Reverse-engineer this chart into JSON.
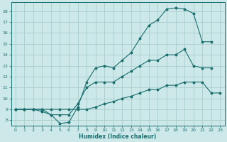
{
  "bg_color": "#cce8e8",
  "grid_color": "#aacccc",
  "line_color": "#1a6e6e",
  "xlabel": "Humidex (Indice chaleur)",
  "xlim": [
    -0.5,
    23.5
  ],
  "ylim": [
    7.5,
    18.8
  ],
  "xticks": [
    0,
    1,
    2,
    3,
    4,
    5,
    6,
    7,
    8,
    9,
    10,
    11,
    12,
    13,
    14,
    15,
    16,
    17,
    18,
    19,
    20,
    21,
    22,
    23
  ],
  "yticks": [
    8,
    9,
    10,
    11,
    12,
    13,
    14,
    15,
    16,
    17,
    18
  ],
  "curve_top_x": [
    0,
    1,
    2,
    3,
    4,
    5,
    6,
    7,
    8,
    9,
    10,
    11,
    12,
    13,
    14,
    15,
    16,
    17,
    18,
    19,
    20,
    21,
    22
  ],
  "curve_top_y": [
    9.0,
    9.0,
    9.0,
    9.0,
    8.5,
    7.7,
    7.8,
    9.2,
    11.5,
    12.8,
    13.0,
    12.8,
    13.5,
    14.2,
    15.5,
    16.7,
    17.2,
    18.2,
    18.3,
    18.2,
    17.8,
    15.2,
    15.2
  ],
  "curve_mid_x": [
    0,
    1,
    2,
    3,
    4,
    5,
    6,
    7,
    8,
    9,
    10,
    11,
    12,
    13,
    14,
    15,
    16,
    17,
    18,
    19,
    20,
    21,
    22
  ],
  "curve_mid_y": [
    9.0,
    9.0,
    9.0,
    8.8,
    8.5,
    8.5,
    8.5,
    9.5,
    11.0,
    11.5,
    11.5,
    11.5,
    12.0,
    12.5,
    13.0,
    13.5,
    13.5,
    14.0,
    14.0,
    14.5,
    13.0,
    12.8,
    12.8
  ],
  "curve_bot_x": [
    0,
    1,
    2,
    3,
    4,
    5,
    6,
    7,
    8,
    9,
    10,
    11,
    12,
    13,
    14,
    15,
    16,
    17,
    18,
    19,
    20,
    21,
    22,
    23
  ],
  "curve_bot_y": [
    9.0,
    9.0,
    9.0,
    9.0,
    9.0,
    9.0,
    9.0,
    9.0,
    9.0,
    9.2,
    9.5,
    9.7,
    10.0,
    10.2,
    10.5,
    10.8,
    10.8,
    11.2,
    11.2,
    11.5,
    11.5,
    11.5,
    10.5,
    10.5
  ]
}
